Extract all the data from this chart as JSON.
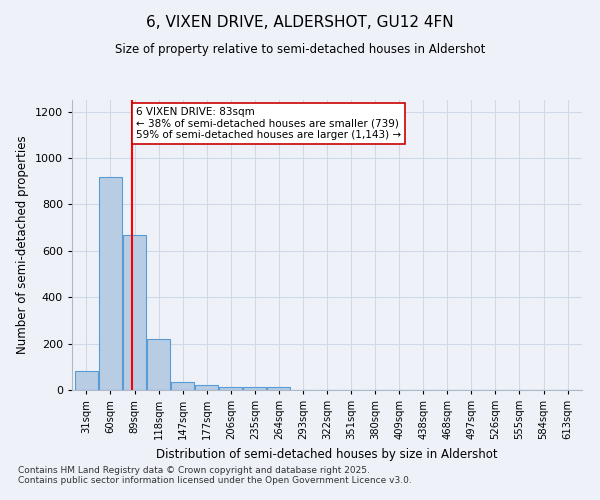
{
  "title": "6, VIXEN DRIVE, ALDERSHOT, GU12 4FN",
  "subtitle": "Size of property relative to semi-detached houses in Aldershot",
  "xlabel": "Distribution of semi-detached houses by size in Aldershot",
  "ylabel": "Number of semi-detached properties",
  "bin_labels": [
    "31sqm",
    "60sqm",
    "89sqm",
    "118sqm",
    "147sqm",
    "177sqm",
    "206sqm",
    "235sqm",
    "264sqm",
    "293sqm",
    "322sqm",
    "351sqm",
    "380sqm",
    "409sqm",
    "438sqm",
    "468sqm",
    "497sqm",
    "526sqm",
    "555sqm",
    "584sqm",
    "613sqm"
  ],
  "bar_values": [
    80,
    920,
    670,
    220,
    35,
    20,
    12,
    12,
    12,
    0,
    0,
    0,
    0,
    0,
    0,
    0,
    0,
    0,
    0,
    0,
    0
  ],
  "bar_color": "#b8cce4",
  "bar_edge_color": "#5b9bd5",
  "ylim": [
    0,
    1250
  ],
  "yticks": [
    0,
    200,
    400,
    600,
    800,
    1000,
    1200
  ],
  "property_label": "6 VIXEN DRIVE: 83sqm",
  "pct_smaller": 38,
  "pct_larger": 59,
  "count_smaller": 739,
  "count_larger": 1143,
  "vline_bin_index": 1.9,
  "annotation_box_color": "#ffffff",
  "annotation_box_edge_color": "#cc0000",
  "grid_color": "#d0d8e8",
  "footnote": "Contains HM Land Registry data © Crown copyright and database right 2025.\nContains public sector information licensed under the Open Government Licence v3.0.",
  "background_color": "#eef2f8"
}
